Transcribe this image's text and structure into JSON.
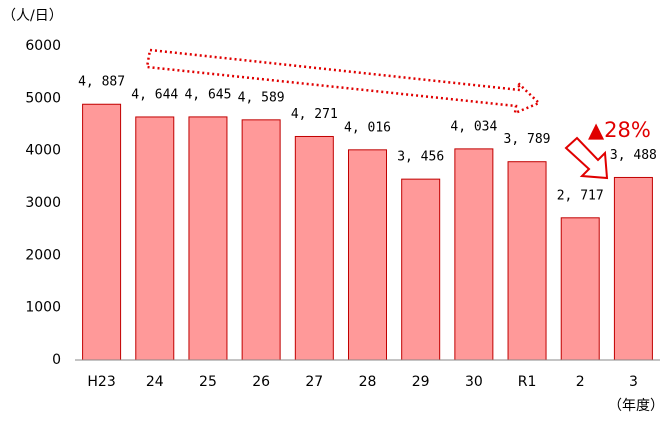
{
  "chart_data": {
    "type": "bar",
    "y_label": "（人/日）",
    "x_label": "（年度）",
    "annotation": "▲28%",
    "categories": [
      "H23",
      "24",
      "25",
      "26",
      "27",
      "28",
      "29",
      "30",
      "R1",
      "2",
      "3"
    ],
    "values": [
      4887,
      4644,
      4645,
      4589,
      4271,
      4016,
      3456,
      4034,
      3789,
      2717,
      3488
    ],
    "value_labels": [
      "4, 887",
      "4, 644",
      "4, 645",
      "4, 589",
      "4, 271",
      "4, 016",
      "3, 456",
      "4, 034",
      "3, 789",
      "2, 717",
      "3, 488"
    ],
    "color": "#ff9999",
    "edge_color": "#c00000",
    "ylim": [
      0,
      6000
    ],
    "yticks": [
      0,
      1000,
      2000,
      3000,
      4000,
      5000,
      6000
    ],
    "grid": false
  }
}
